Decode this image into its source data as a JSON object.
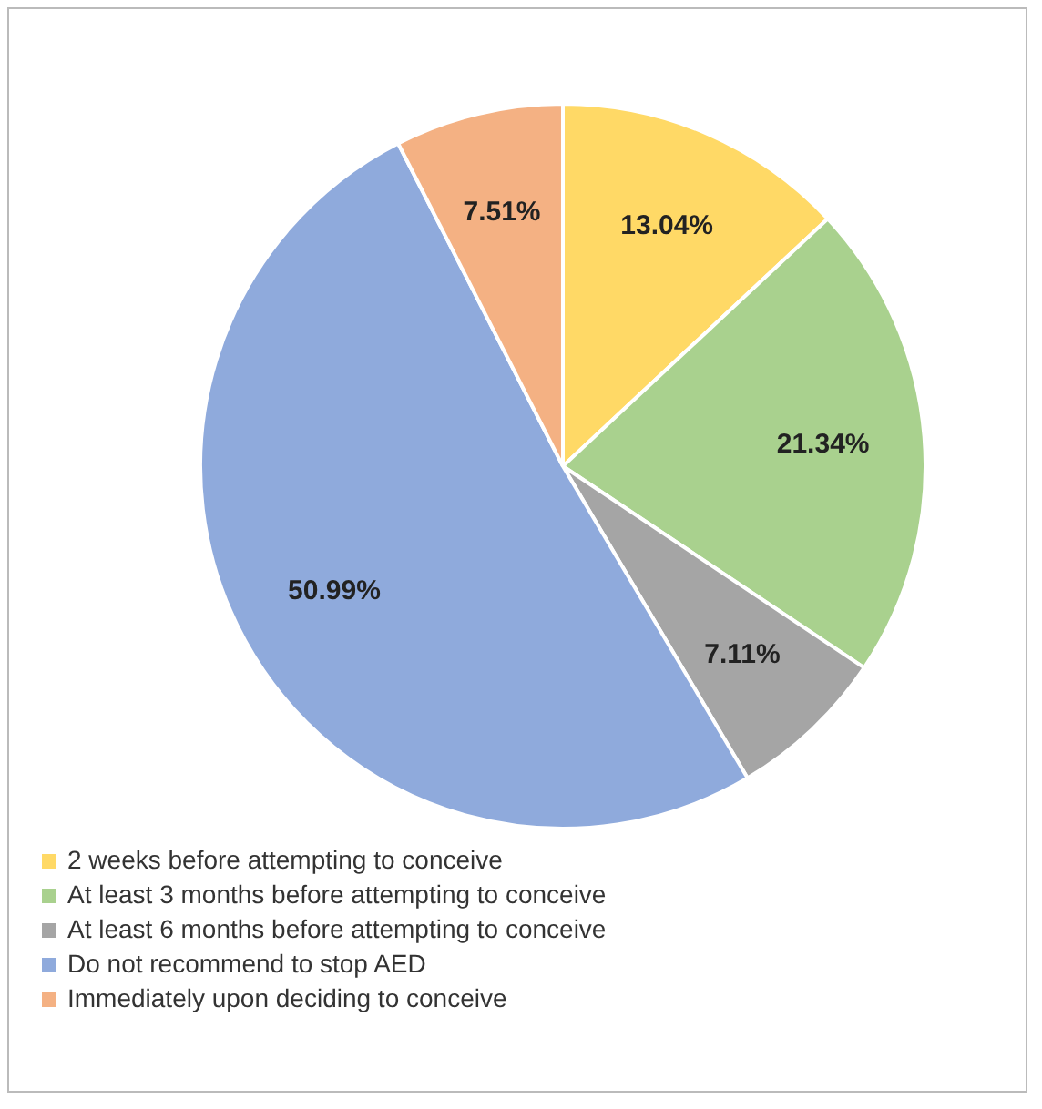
{
  "chart_data": {
    "type": "pie",
    "categories": [
      "2 weeks before attempting to conceive",
      "At least 3 months before attempting to conceive",
      "At least 6 months before attempting to conceive",
      "Do not recommend to stop AED",
      "Immediately upon deciding to conceive"
    ],
    "values": [
      13.04,
      21.34,
      7.11,
      50.99,
      7.51
    ],
    "colors": [
      "#ffd966",
      "#a9d18e",
      "#a5a5a5",
      "#8faadc",
      "#f4b183"
    ],
    "value_labels": [
      "13.04%",
      "21.34%",
      "7.11%",
      "50.99%",
      "7.51%"
    ],
    "legend": "bottom left"
  }
}
